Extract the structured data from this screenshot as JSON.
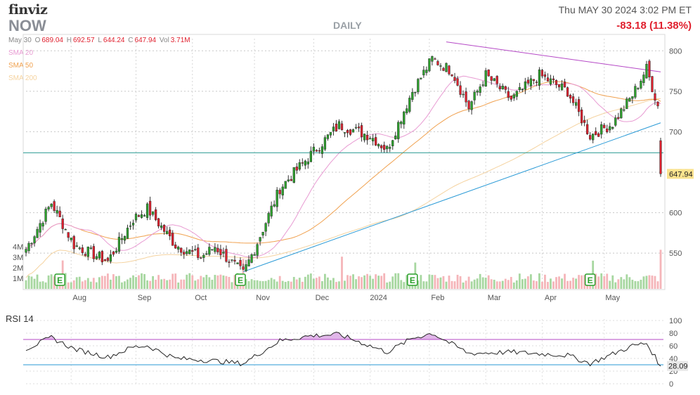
{
  "header": {
    "logo": "finviz",
    "ticker": "NOW",
    "timeframe": "DAILY",
    "datetime": "Thu MAY 30 2024 3:02 PM ET",
    "change": "-83.18 (11.38%)"
  },
  "ohlc_bar": {
    "date": "May 30",
    "open_label": "O",
    "open": "689.04",
    "high_label": "H",
    "high": "692.57",
    "low_label": "L",
    "low": "644.24",
    "close_label": "C",
    "close": "647.94",
    "volume_label": "Vol",
    "volume": "3.71M"
  },
  "legend": [
    {
      "label": "SMA 20",
      "color": "#e89ad2"
    },
    {
      "label": "SMA 50",
      "color": "#f0a14f"
    },
    {
      "label": "SMA 200",
      "color": "#f5d3a0"
    }
  ],
  "colors": {
    "up": "#2ca02c",
    "down": "#e0202e",
    "vol_up": "#a7d7a0",
    "vol_down": "#f5b5b9",
    "trend": "#2a9ad6",
    "resistance": "#b548c6",
    "horizontal": "#2b9b93",
    "rsi_line": "#222",
    "rsi_upper": "#b548c6",
    "rsi_lower": "#2a9ad6"
  },
  "chart_data": [
    {
      "type": "candlestick",
      "title": "NOW",
      "price_axis": {
        "range": [
          505,
          815
        ],
        "ticks": [
          550,
          600,
          650,
          700,
          750,
          800
        ]
      },
      "volume_axis": {
        "ticks": [
          "1M",
          "2M",
          "3M",
          "4M"
        ]
      },
      "x_ticks": [
        "Aug",
        "Sep",
        "Oct",
        "Nov",
        "Dec",
        "2024",
        "Feb",
        "Mar",
        "Apr",
        "May"
      ],
      "last_price": "647.94",
      "horizontal_level": 674,
      "earnings_marker": "E",
      "anchors": [
        {
          "date": "Jul 10 2023",
          "close": 555
        },
        {
          "date": "Jul 21 2023",
          "close": 612
        },
        {
          "date": "Aug 2 2023",
          "close": 560
        },
        {
          "date": "Aug 18 2023",
          "close": 540
        },
        {
          "date": "Aug 31 2023",
          "close": 592
        },
        {
          "date": "Sep 8 2023",
          "close": 605
        },
        {
          "date": "Sep 22 2023",
          "close": 560
        },
        {
          "date": "Oct 5 2023",
          "close": 545
        },
        {
          "date": "Oct 12 2023",
          "close": 558
        },
        {
          "date": "Oct 26 2023",
          "close": 525
        },
        {
          "date": "Nov 1 2023",
          "close": 555
        },
        {
          "date": "Nov 14 2023",
          "close": 630
        },
        {
          "date": "Nov 30 2023",
          "close": 672
        },
        {
          "date": "Dec 14 2023",
          "close": 708
        },
        {
          "date": "Jan 2 2024",
          "close": 695
        },
        {
          "date": "Jan 10 2024",
          "close": 678
        },
        {
          "date": "Jan 24 2024",
          "close": 750
        },
        {
          "date": "Feb 2 2024",
          "close": 790
        },
        {
          "date": "Feb 13 2024",
          "close": 775
        },
        {
          "date": "Feb 22 2024",
          "close": 730
        },
        {
          "date": "Mar 1 2024",
          "close": 770
        },
        {
          "date": "Mar 14 2024",
          "close": 740
        },
        {
          "date": "Mar 28 2024",
          "close": 770
        },
        {
          "date": "Apr 12 2024",
          "close": 750
        },
        {
          "date": "Apr 24 2024",
          "close": 695
        },
        {
          "date": "May 6 2024",
          "close": 710
        },
        {
          "date": "May 15 2024",
          "close": 745
        },
        {
          "date": "May 22 2024",
          "close": 778
        },
        {
          "date": "May 29 2024",
          "close": 732
        },
        {
          "date": "May 30 2024",
          "close": 648
        }
      ],
      "trendlines": [
        {
          "from": {
            "date": "Oct 26 2023",
            "price": 527
          },
          "to": {
            "date": "May 30 2024",
            "price": 711
          }
        },
        {
          "from": {
            "date": "Feb 9 2024",
            "price": 811
          },
          "to": {
            "date": "May 30 2024",
            "price": 774
          }
        }
      ],
      "earnings_dates": [
        "Jul 26 2023",
        "Oct 25 2023",
        "Jan 24 2024",
        "Apr 24 2024"
      ]
    },
    {
      "type": "line",
      "title": "RSI 14",
      "ylim": [
        0,
        100
      ],
      "ticks": [
        0,
        20,
        40,
        60,
        80,
        100
      ],
      "reference_levels": [
        30,
        70
      ],
      "last_value": "28.09",
      "anchors": [
        {
          "date": "Jul 10 2023",
          "value": 55
        },
        {
          "date": "Jul 21 2023",
          "value": 73
        },
        {
          "date": "Aug 2 2023",
          "value": 55
        },
        {
          "date": "Aug 18 2023",
          "value": 42
        },
        {
          "date": "Aug 31 2023",
          "value": 58
        },
        {
          "date": "Sep 8 2023",
          "value": 60
        },
        {
          "date": "Sep 22 2023",
          "value": 40
        },
        {
          "date": "Oct 5 2023",
          "value": 38
        },
        {
          "date": "Oct 26 2023",
          "value": 32
        },
        {
          "date": "Nov 14 2023",
          "value": 68
        },
        {
          "date": "Nov 30 2023",
          "value": 76
        },
        {
          "date": "Dec 14 2023",
          "value": 78
        },
        {
          "date": "Jan 10 2024",
          "value": 50
        },
        {
          "date": "Jan 24 2024",
          "value": 72
        },
        {
          "date": "Feb 2 2024",
          "value": 80
        },
        {
          "date": "Feb 22 2024",
          "value": 48
        },
        {
          "date": "Mar 14 2024",
          "value": 50
        },
        {
          "date": "Apr 12 2024",
          "value": 45
        },
        {
          "date": "Apr 24 2024",
          "value": 32
        },
        {
          "date": "May 15 2024",
          "value": 60
        },
        {
          "date": "May 22 2024",
          "value": 64
        },
        {
          "date": "May 30 2024",
          "value": 28
        }
      ]
    }
  ]
}
